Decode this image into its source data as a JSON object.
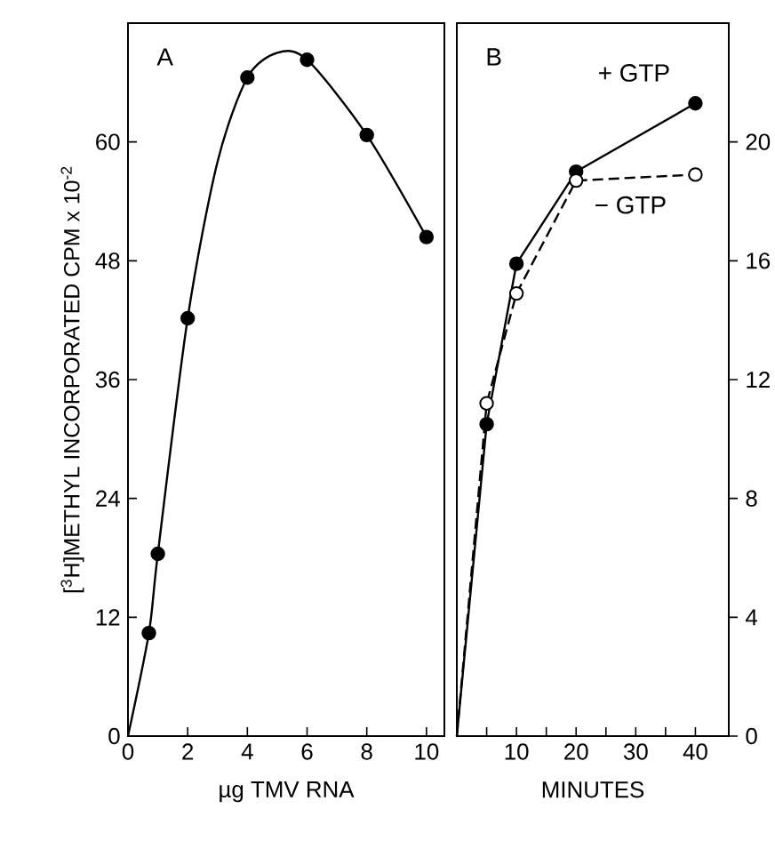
{
  "chart_data": [
    {
      "type": "scatter",
      "xlabel": "µg TMV RNA",
      "ylabel": "[$^{3}$H]METHYL INCORPORATED CPM x 10$^{-2}$",
      "annotations": [
        "A"
      ],
      "xlim": [
        0,
        10.6
      ],
      "ylim": [
        0,
        72
      ],
      "xticks": [
        0,
        2,
        4,
        6,
        8,
        10
      ],
      "yticks": [
        0,
        12,
        24,
        36,
        48,
        60
      ],
      "series": [
        {
          "type": "line",
          "color": "#000000",
          "marker": "none",
          "line_style": "solid",
          "x": [
            0,
            0.7,
            1,
            2,
            3,
            4,
            5,
            6,
            8,
            10
          ],
          "values": [
            0,
            10.4,
            18.4,
            42.2,
            58,
            66.5,
            69,
            68.3,
            60.7,
            50.4
          ]
        },
        {
          "color": "#000000",
          "marker": "circle",
          "x": [
            0.7,
            1,
            2,
            4,
            6,
            8,
            10
          ],
          "values": [
            10.4,
            18.4,
            42.2,
            66.5,
            68.3,
            60.7,
            50.4
          ]
        }
      ]
    },
    {
      "type": "line",
      "xlabel": "MINUTES",
      "annotations": [
        "B"
      ],
      "xlim": [
        0,
        45.6
      ],
      "ylim": [
        0,
        24
      ],
      "xticks": [
        {
          "value": 5,
          "label": null
        },
        10,
        {
          "value": 15,
          "label": null
        },
        20,
        {
          "value": 25,
          "label": null
        },
        30,
        {
          "value": 35,
          "label": null
        },
        40
      ],
      "yticks": [
        0,
        4,
        8,
        12,
        16,
        20
      ],
      "series": [
        {
          "name": "+ GTP",
          "color": "#000000",
          "marker": "none",
          "line_style": "solid",
          "x": [
            0,
            5,
            10,
            20,
            40
          ],
          "values": [
            0,
            10.5,
            15.9,
            19.0,
            21.3
          ]
        },
        {
          "name": "− GTP",
          "color": "#000000",
          "marker": "none",
          "line_style": "dashed",
          "x": [
            0,
            5,
            10,
            20,
            40
          ],
          "values": [
            0,
            11.2,
            14.9,
            18.7,
            18.9
          ]
        },
        {
          "type": "scatter",
          "color": "#000000",
          "marker": "circle",
          "x": [
            5,
            10,
            20,
            40
          ],
          "values": [
            10.5,
            15.9,
            19.0,
            21.3
          ]
        },
        {
          "type": "scatter",
          "color": "#ffffff",
          "marker": "circle",
          "x": [
            5,
            10,
            20,
            40
          ],
          "values": [
            11.2,
            14.9,
            18.7,
            18.9
          ]
        }
      ]
    }
  ]
}
